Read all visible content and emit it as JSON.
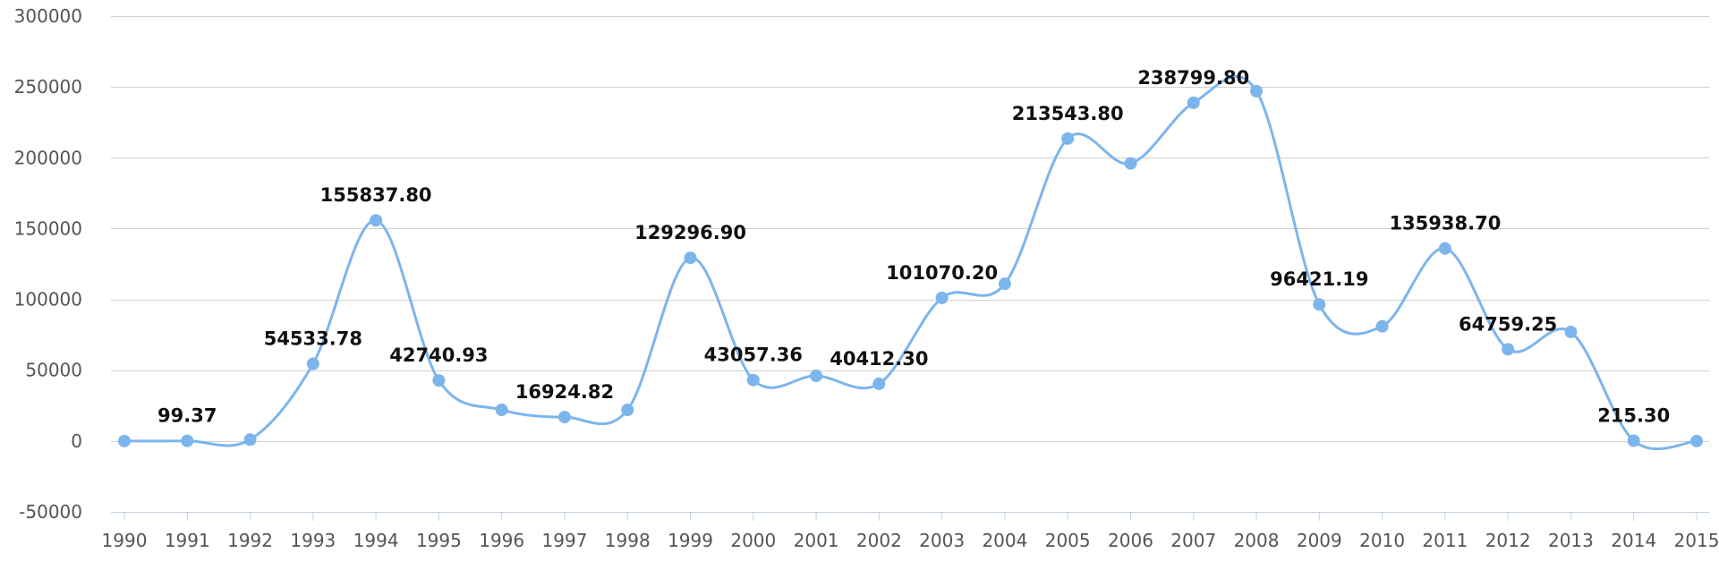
{
  "chart_data": {
    "type": "line",
    "smooth": true,
    "color": "#7cb5ec",
    "grid": true,
    "legend": "none",
    "ylim": [
      -50000,
      300000
    ],
    "y_ticks": [
      "-50000",
      "0",
      "50000",
      "100000",
      "150000",
      "200000",
      "250000",
      "300000"
    ],
    "y_tick_values": [
      -50000,
      0,
      50000,
      100000,
      150000,
      200000,
      250000,
      300000
    ],
    "categories": [
      "1990",
      "1991",
      "1992",
      "1993",
      "1994",
      "1995",
      "1996",
      "1997",
      "1998",
      "1999",
      "2000",
      "2001",
      "2002",
      "2003",
      "2004",
      "2005",
      "2006",
      "2007",
      "2008",
      "2009",
      "2010",
      "2011",
      "2012",
      "2013",
      "2014",
      "2015"
    ],
    "series": [
      {
        "values": [
          0,
          99.37,
          1000,
          54533.78,
          155837.8,
          42740.93,
          22000,
          16924.82,
          22000,
          129296.9,
          43057.36,
          46000,
          40412.3,
          101070.2,
          111000,
          213543.8,
          196000,
          238799.8,
          247000,
          96421.19,
          81000,
          135938.7,
          64759.25,
          77000,
          215.3,
          0
        ],
        "data_labels": [
          "",
          "99.37",
          "",
          "54533.78",
          "155837.80",
          "42740.93",
          "",
          "16924.82",
          "",
          "129296.90",
          "43057.36",
          "",
          "40412.30",
          "101070.20",
          "",
          "213543.80",
          "",
          "238799.80",
          "",
          "96421.19",
          "",
          "135938.70",
          "64759.25",
          "",
          "215.30",
          ""
        ]
      }
    ]
  }
}
